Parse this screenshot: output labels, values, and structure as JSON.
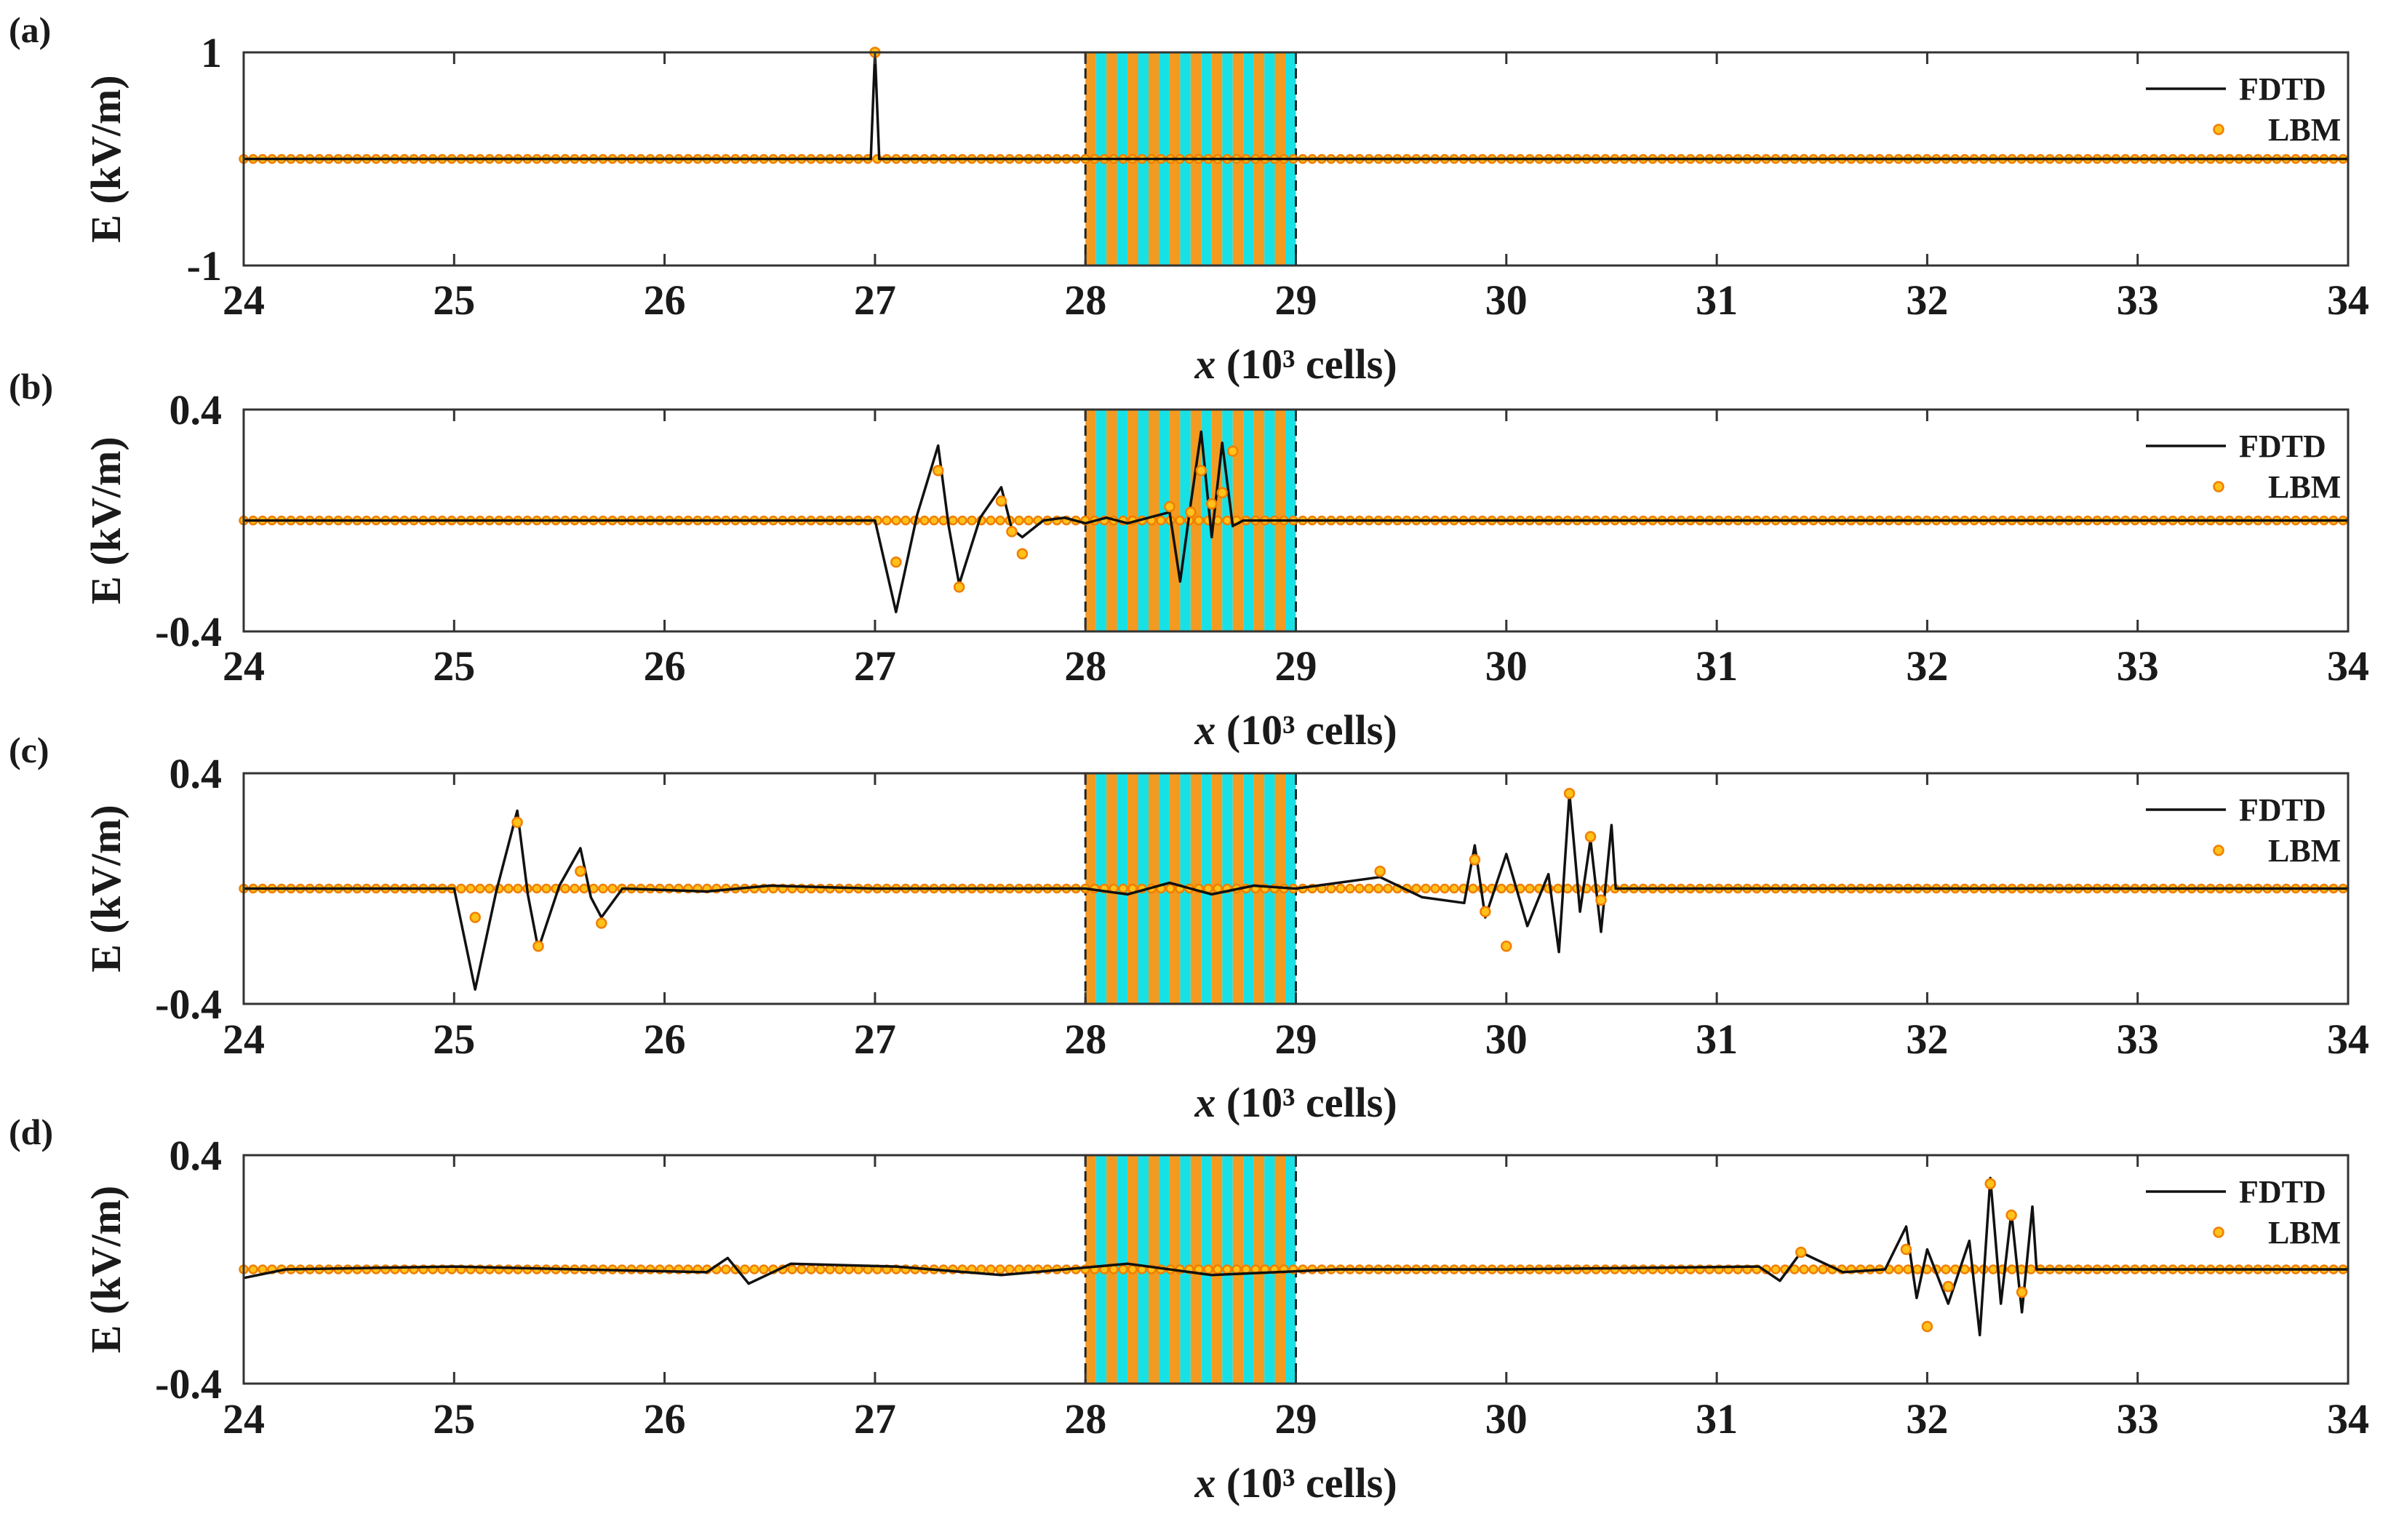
{
  "colors": {
    "fdtd_line": "#111111",
    "lbm_marker_fill": "#ffc21a",
    "lbm_marker_edge": "#f07f00",
    "layer_cyan": "#18e1e6",
    "layer_orange": "#f39a20",
    "axes": "#333333"
  },
  "legend": {
    "fdtd": "FDTD",
    "lbm": "LBM",
    "placement": "top-right"
  },
  "chart_data": [
    {
      "panel_label": "(a)",
      "type": "line",
      "xlabel_var": "x",
      "xlabel_rest": "(10³ cells)",
      "ylabel": "E (kV/m)",
      "xlim": [
        24,
        34
      ],
      "ylim": [
        -1,
        1
      ],
      "xticks": [
        "24",
        "25",
        "26",
        "27",
        "28",
        "29",
        "30",
        "31",
        "32",
        "33",
        "34"
      ],
      "yticks": [
        "1",
        "-1"
      ],
      "grid": false,
      "layered_region": [
        28,
        29
      ],
      "series": [
        {
          "name": "FDTD",
          "x": [
            24,
            26.98,
            27.0,
            27.02,
            34
          ],
          "y": [
            0,
            0,
            1.0,
            0,
            0
          ]
        },
        {
          "name": "LBM",
          "x": [
            27.0
          ],
          "y": [
            1.0
          ]
        }
      ],
      "lbm_baseline": {
        "from": 24,
        "to": 34,
        "y": 0
      }
    },
    {
      "panel_label": "(b)",
      "type": "line",
      "xlabel_var": "x",
      "xlabel_rest": "(10³ cells)",
      "ylabel": "E (kV/m)",
      "xlim": [
        24,
        34
      ],
      "ylim": [
        -0.4,
        0.4
      ],
      "xticks": [
        "24",
        "25",
        "26",
        "27",
        "28",
        "29",
        "30",
        "31",
        "32",
        "33",
        "34"
      ],
      "yticks": [
        "0.4",
        "-0.4"
      ],
      "grid": false,
      "layered_region": [
        28,
        29
      ],
      "series": [
        {
          "name": "FDTD",
          "x": [
            24,
            27.0,
            27.1,
            27.2,
            27.3,
            27.35,
            27.4,
            27.5,
            27.6,
            27.65,
            27.7,
            27.8,
            27.9,
            28.0,
            28.1,
            28.2,
            28.3,
            28.4,
            28.45,
            28.5,
            28.55,
            28.6,
            28.65,
            28.7,
            28.75,
            34
          ],
          "y": [
            0,
            0,
            -0.33,
            0.02,
            0.27,
            -0.02,
            -0.23,
            0.01,
            0.12,
            -0.03,
            -0.06,
            0.0,
            0.01,
            -0.01,
            0.01,
            -0.01,
            0.01,
            0.03,
            -0.22,
            0.06,
            0.32,
            -0.06,
            0.28,
            -0.02,
            0,
            0
          ]
        },
        {
          "name": "LBM",
          "x": [
            27.1,
            27.3,
            27.4,
            27.6,
            27.65,
            27.7,
            28.4,
            28.5,
            28.55,
            28.6,
            28.65,
            28.7
          ],
          "y": [
            -0.15,
            0.18,
            -0.24,
            0.07,
            -0.04,
            -0.12,
            0.05,
            0.03,
            0.18,
            0.06,
            0.1,
            0.25
          ]
        }
      ],
      "lbm_baseline": {
        "from": 24,
        "to": 34,
        "y": 0
      }
    },
    {
      "panel_label": "(c)",
      "type": "line",
      "xlabel_var": "x",
      "xlabel_rest": "(10³ cells)",
      "ylabel": "E (kV/m)",
      "xlim": [
        24,
        34
      ],
      "ylim": [
        -0.4,
        0.4
      ],
      "xticks": [
        "24",
        "25",
        "26",
        "27",
        "28",
        "29",
        "30",
        "31",
        "32",
        "33",
        "34"
      ],
      "yticks": [
        "0.4",
        "-0.4"
      ],
      "grid": false,
      "layered_region": [
        28,
        29
      ],
      "series": [
        {
          "name": "FDTD",
          "x": [
            24,
            25.0,
            25.1,
            25.2,
            25.3,
            25.35,
            25.4,
            25.5,
            25.6,
            25.65,
            25.7,
            25.8,
            26.2,
            26.5,
            27.0,
            28.0,
            28.2,
            28.4,
            28.6,
            28.8,
            29.0,
            29.4,
            29.6,
            29.8,
            29.85,
            29.9,
            30.0,
            30.1,
            30.2,
            30.25,
            30.3,
            30.35,
            30.4,
            30.45,
            30.5,
            30.52,
            34
          ],
          "y": [
            0,
            0,
            -0.35,
            -0.01,
            0.27,
            -0.02,
            -0.21,
            0.01,
            0.14,
            -0.03,
            -0.1,
            0.0,
            -0.01,
            0.01,
            0.0,
            0.0,
            -0.02,
            0.02,
            -0.02,
            0.01,
            0.0,
            0.04,
            -0.03,
            -0.05,
            0.15,
            -0.1,
            0.12,
            -0.13,
            0.05,
            -0.22,
            0.33,
            -0.08,
            0.17,
            -0.15,
            0.22,
            0,
            0
          ]
        },
        {
          "name": "LBM",
          "x": [
            25.1,
            25.3,
            25.4,
            25.6,
            25.7,
            29.4,
            29.85,
            29.9,
            30.0,
            30.3,
            30.4,
            30.45
          ],
          "y": [
            -0.1,
            0.23,
            -0.2,
            0.06,
            -0.12,
            0.06,
            0.1,
            -0.08,
            -0.2,
            0.33,
            0.18,
            -0.04
          ]
        }
      ],
      "lbm_baseline": {
        "from": 24,
        "to": 34,
        "y": 0
      }
    },
    {
      "panel_label": "(d)",
      "type": "line",
      "xlabel_var": "x",
      "xlabel_rest": "(10³ cells)",
      "ylabel": "E (kV/m)",
      "xlim": [
        24,
        34
      ],
      "ylim": [
        -0.4,
        0.4
      ],
      "xticks": [
        "24",
        "25",
        "26",
        "27",
        "28",
        "29",
        "30",
        "31",
        "32",
        "33",
        "34"
      ],
      "yticks": [
        "0.4",
        "-0.4"
      ],
      "grid": false,
      "layered_region": [
        28,
        29
      ],
      "series": [
        {
          "name": "FDTD",
          "x": [
            24,
            24.2,
            25.0,
            26.2,
            26.3,
            26.4,
            26.6,
            27.1,
            27.6,
            28.2,
            28.6,
            29.2,
            30.0,
            31.2,
            31.3,
            31.4,
            31.6,
            31.8,
            31.9,
            31.95,
            32.0,
            32.1,
            32.2,
            32.25,
            32.3,
            32.35,
            32.4,
            32.45,
            32.5,
            32.52,
            34
          ],
          "y": [
            -0.03,
            0.0,
            0.01,
            -0.01,
            0.04,
            -0.05,
            0.02,
            0.01,
            -0.02,
            0.02,
            -0.02,
            0.0,
            0.0,
            0.01,
            -0.04,
            0.06,
            -0.01,
            0.0,
            0.15,
            -0.1,
            0.07,
            -0.12,
            0.1,
            -0.23,
            0.32,
            -0.12,
            0.2,
            -0.15,
            0.22,
            0,
            0
          ]
        },
        {
          "name": "LBM",
          "x": [
            31.4,
            31.9,
            32.0,
            32.1,
            32.3,
            32.4,
            32.45
          ],
          "y": [
            0.06,
            0.07,
            -0.2,
            -0.06,
            0.3,
            0.19,
            -0.08
          ]
        }
      ],
      "lbm_baseline": {
        "from": 24,
        "to": 34,
        "y": 0
      }
    }
  ]
}
